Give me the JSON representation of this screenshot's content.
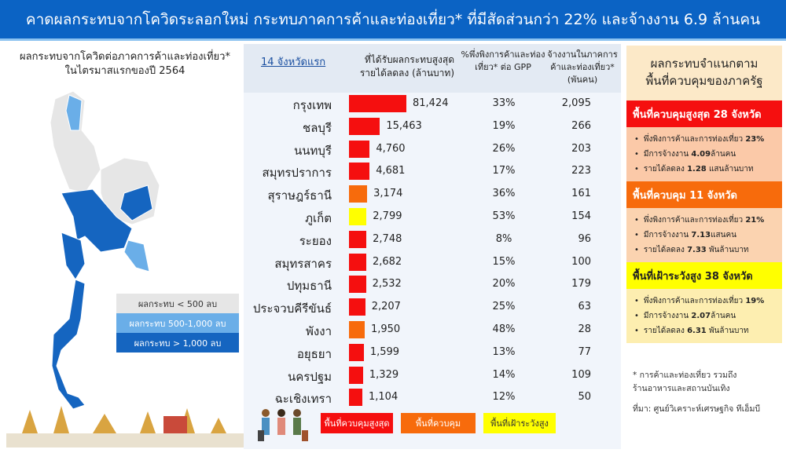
{
  "title": "คาดผลกระทบจากโควิดระลอกใหม่ กระทบภาคการค้าและท่องเที่ยว* ที่มีสัดส่วนกว่า 22% และจ้างงาน 6.9 ล้านคน",
  "map": {
    "title_line1": "ผลกระทบจากโควิดต่อภาคการค้าและท่องเที่ยว*",
    "title_line2": "ในไตรมาสแรกของปี 2564",
    "legend": [
      {
        "label": "ผลกระทบ < 500 ลบ",
        "color": "#e6e6e6"
      },
      {
        "label": "ผลกระทบ 500-1,000 ลบ",
        "color": "#6aaee8"
      },
      {
        "label": "ผลกระทบ > 1,000 ลบ",
        "color": "#1565c0"
      }
    ]
  },
  "table": {
    "header_highlight": "14 จังหวัดแรก",
    "header_rest": "ที่ได้รับผลกระทบสูงสุด",
    "header_sub": "รายได้ลดลง (ล้านบาท)",
    "col_pct": "%พึ่งพิงการค้าและท่องเที่ยว* ต่อ GPP",
    "col_emp": "จ้างงานในภาคการค้าและท่องเที่ยว* (พันคน)",
    "rows": [
      {
        "province": "กรุงเทพ",
        "loss": 81424,
        "loss_label": "81,424",
        "pct": "33%",
        "emp": "2,095",
        "zone": "highest"
      },
      {
        "province": "ชลบุรี",
        "loss": 15463,
        "loss_label": "15,463",
        "pct": "19%",
        "emp": "266",
        "zone": "highest"
      },
      {
        "province": "นนทบุรี",
        "loss": 4760,
        "loss_label": "4,760",
        "pct": "26%",
        "emp": "203",
        "zone": "highest"
      },
      {
        "province": "สมุทรปราการ",
        "loss": 4681,
        "loss_label": "4,681",
        "pct": "17%",
        "emp": "223",
        "zone": "highest"
      },
      {
        "province": "สุราษฎร์ธานี",
        "loss": 3174,
        "loss_label": "3,174",
        "pct": "36%",
        "emp": "161",
        "zone": "control"
      },
      {
        "province": "ภูเก็ต",
        "loss": 2799,
        "loss_label": "2,799",
        "pct": "53%",
        "emp": "154",
        "zone": "watch"
      },
      {
        "province": "ระยอง",
        "loss": 2748,
        "loss_label": "2,748",
        "pct": "8%",
        "emp": "96",
        "zone": "highest"
      },
      {
        "province": "สมุทรสาคร",
        "loss": 2682,
        "loss_label": "2,682",
        "pct": "15%",
        "emp": "100",
        "zone": "highest"
      },
      {
        "province": "ปทุมธานี",
        "loss": 2532,
        "loss_label": "2,532",
        "pct": "20%",
        "emp": "179",
        "zone": "highest"
      },
      {
        "province": "ประจวบคีรีขันธ์",
        "loss": 2207,
        "loss_label": "2,207",
        "pct": "25%",
        "emp": "63",
        "zone": "highest"
      },
      {
        "province": "พังงา",
        "loss": 1950,
        "loss_label": "1,950",
        "pct": "48%",
        "emp": "28",
        "zone": "control"
      },
      {
        "province": "อยุธยา",
        "loss": 1599,
        "loss_label": "1,599",
        "pct": "13%",
        "emp": "77",
        "zone": "highest"
      },
      {
        "province": "นครปฐม",
        "loss": 1329,
        "loss_label": "1,329",
        "pct": "14%",
        "emp": "109",
        "zone": "highest"
      },
      {
        "province": "ฉะเชิงเทรา",
        "loss": 1104,
        "loss_label": "1,104",
        "pct": "12%",
        "emp": "50",
        "zone": "highest"
      }
    ],
    "zone_colors": {
      "highest": "#f50f0f",
      "control": "#f76b0c",
      "watch": "#ffff00"
    },
    "key": [
      {
        "label": "พื้นที่ควบคุมสูงสุด",
        "color": "#f50f0f"
      },
      {
        "label": "พื้นที่ควบคุม",
        "color": "#f76b0c"
      },
      {
        "label": "พื้นที่เฝ้าระวังสูง",
        "color": "#ffff00"
      }
    ]
  },
  "zones": {
    "title_line1": "ผลกระทบจำแนกตาม",
    "title_line2": "พื้นที่ควบคุมของภาครัฐ",
    "items": [
      {
        "header": "พื้นที่ควบคุมสูงสุด 28 จังหวัด",
        "header_color": "#f50f0f",
        "body_color": "#fbc9a8",
        "bullets": [
          [
            "พึ่งพิงการค้าและการท่องเที่ยว ",
            "23%",
            ""
          ],
          [
            "มีการจ้างงาน ",
            "4.09",
            "ล้านคน"
          ],
          [
            "รายได้ลดลง ",
            "1.28",
            " แสนล้านบาท"
          ]
        ]
      },
      {
        "header": "พื้นที่ควบคุม 11 จังหวัด",
        "header_color": "#f76b0c",
        "body_color": "#fbd3b0",
        "bullets": [
          [
            "พึ่งพิงการค้าและการท่องเที่ยว ",
            "21%",
            ""
          ],
          [
            "มีการจ้างงาน ",
            "7.13",
            "แสนคน"
          ],
          [
            "รายได้ลดลง ",
            "7.33",
            " พันล้านบาท"
          ]
        ]
      },
      {
        "header": "พื้นที่เฝ้าระวังสูง 38 จังหวัด",
        "header_color": "#ffff00",
        "body_color": "#fdeeb0",
        "bullets": [
          [
            "พึ่งพิงการค้าและการท่องเที่ยว ",
            "19%",
            ""
          ],
          [
            "มีการจ้างงาน ",
            "2.07",
            "ล้านคน"
          ],
          [
            "รายได้ลดลง ",
            "6.31",
            " พันล้านบาท"
          ]
        ]
      }
    ],
    "note_line1": "* การค้าและท่องเที่ยว รวมถึง",
    "note_line2": "ร้านอาหารและสถานบันเทิง",
    "source": "ที่มา: ศูนย์วิเคราะห์เศรษฐกิจ ทีเอ็มบี"
  }
}
